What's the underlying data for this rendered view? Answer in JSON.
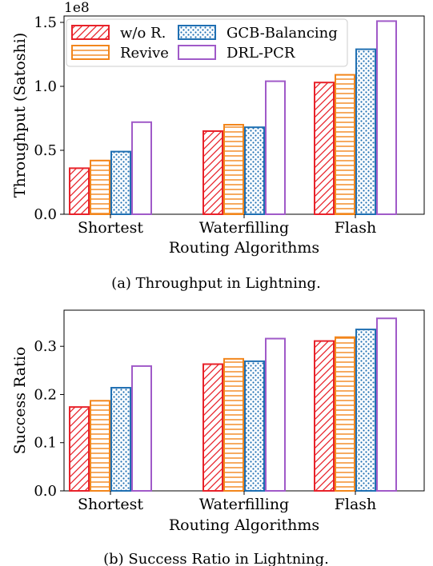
{
  "chart_data": [
    {
      "type": "bar",
      "caption": "(a) Throughput in Lightning.",
      "xlabel": "Routing Algorithms",
      "ylabel": "Throughput (Satoshi)",
      "scale_label": "1e8",
      "categories": [
        "Shortest",
        "Waterfilling",
        "Flash"
      ],
      "ylim": [
        0,
        1.55
      ],
      "yticks": [
        "0.0",
        "0.5",
        "1.0",
        "1.5"
      ],
      "legend": {
        "placement": "top-left",
        "columns": 2
      },
      "series": [
        {
          "name": "w/o R.",
          "values": [
            0.36,
            0.65,
            1.03
          ],
          "color": "#e8222a",
          "pattern": "diagonal-hatch"
        },
        {
          "name": "Revive",
          "values": [
            0.42,
            0.7,
            1.09
          ],
          "color": "#f2861c",
          "pattern": "horizontal-hatch"
        },
        {
          "name": "GCB-Balancing",
          "values": [
            0.49,
            0.68,
            1.29
          ],
          "color": "#1f6fb2",
          "pattern": "dots"
        },
        {
          "name": "DRL-PCR",
          "values": [
            0.72,
            1.04,
            1.51
          ],
          "color": "#a05ac8",
          "pattern": "none"
        }
      ]
    },
    {
      "type": "bar",
      "caption": "(b) Success Ratio in Lightning.",
      "xlabel": "Routing Algorithms",
      "ylabel": "Success Ratio",
      "categories": [
        "Shortest",
        "Waterfilling",
        "Flash"
      ],
      "ylim": [
        0,
        0.375
      ],
      "yticks": [
        "0.0",
        "0.1",
        "0.2",
        "0.3"
      ],
      "series": [
        {
          "name": "w/o R.",
          "values": [
            0.174,
            0.263,
            0.311
          ],
          "color": "#e8222a",
          "pattern": "diagonal-hatch"
        },
        {
          "name": "Revive",
          "values": [
            0.187,
            0.274,
            0.319
          ],
          "color": "#f2861c",
          "pattern": "horizontal-hatch"
        },
        {
          "name": "GCB-Balancing",
          "values": [
            0.214,
            0.269,
            0.335
          ],
          "color": "#1f6fb2",
          "pattern": "dots"
        },
        {
          "name": "DRL-PCR",
          "values": [
            0.259,
            0.316,
            0.358
          ],
          "color": "#a05ac8",
          "pattern": "none"
        }
      ]
    }
  ]
}
